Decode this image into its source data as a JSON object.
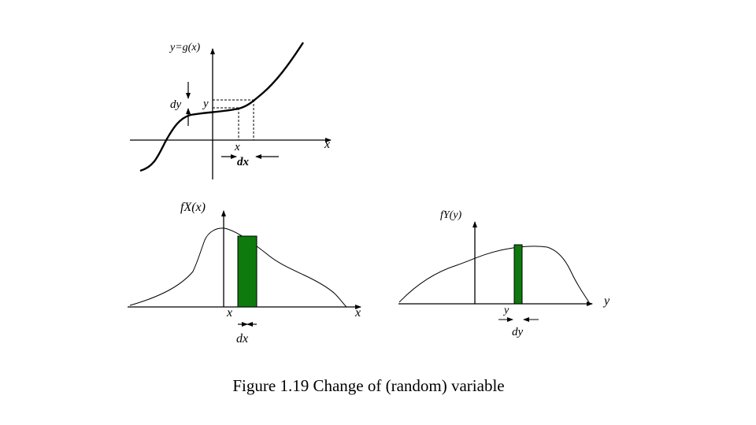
{
  "top_plot": {
    "curve_label": "y=g(x)",
    "x_axis_label": "x",
    "y_mark_label": "y",
    "dy_label": "dy",
    "x_mark_label": "x",
    "dx_label": "dx"
  },
  "bottom_left_plot": {
    "title": "fX(x)",
    "x_axis_label": "x",
    "x_mark_label": "x",
    "dx_label": "dx",
    "bar_color": "#0e7a0e"
  },
  "bottom_right_plot": {
    "title": "fY(y)",
    "y_axis_label": "y",
    "y_mark_label": "y",
    "dy_label": "dy",
    "bar_color": "#0e7a0e"
  },
  "caption": "Figure 1.19  Change of (random) variable"
}
